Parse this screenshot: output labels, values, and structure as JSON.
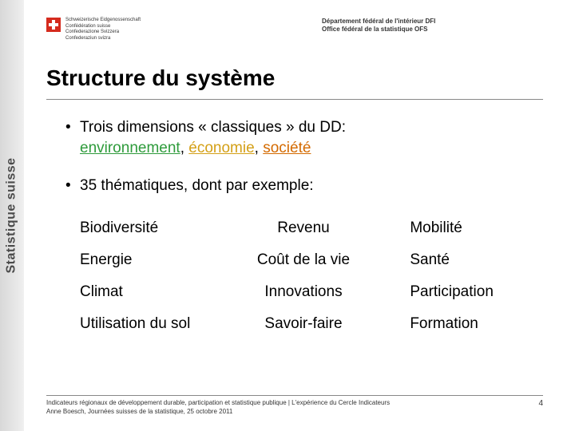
{
  "sidebar": {
    "label": "Statistique suisse"
  },
  "header": {
    "confederation_lines": "Schweizerische Eidgenossenschaft\nConfédération suisse\nConfederazione Svizzera\nConfederaziun svizra",
    "department_line1": "Département fédéral de l'intérieur DFI",
    "department_line2": "Office fédéral de la statistique OFS"
  },
  "title": "Structure du système",
  "bullets": {
    "b1_pre": "Trois dimensions « classiques » du DD:",
    "b1_env": "environnement",
    "b1_sep1": ", ",
    "b1_eco": "économie",
    "b1_sep2": ", ",
    "b1_soc": "société",
    "b2": "35 thématiques, dont par exemple:"
  },
  "colors": {
    "environment": "#2e9b3b",
    "economy": "#d4a017",
    "society": "#d46a00"
  },
  "grid": {
    "r1c1": "Biodiversité",
    "r1c2": "Revenu",
    "r1c3": "Mobilité",
    "r2c1": "Energie",
    "r2c2": "Coût de la vie",
    "r2c3": "Santé",
    "r3c1": "Climat",
    "r3c2": "Innovations",
    "r3c3": "Participation",
    "r4c1": "Utilisation du sol",
    "r4c2": "Savoir-faire",
    "r4c3": "Formation"
  },
  "footer": {
    "line1": "Indicateurs régionaux de développement durable, participation et statistique publique | L'expérience du Cercle Indicateurs",
    "line2": "Anne Boesch, Journées suisses de la statistique, 25 octobre 2011",
    "page": "4"
  }
}
